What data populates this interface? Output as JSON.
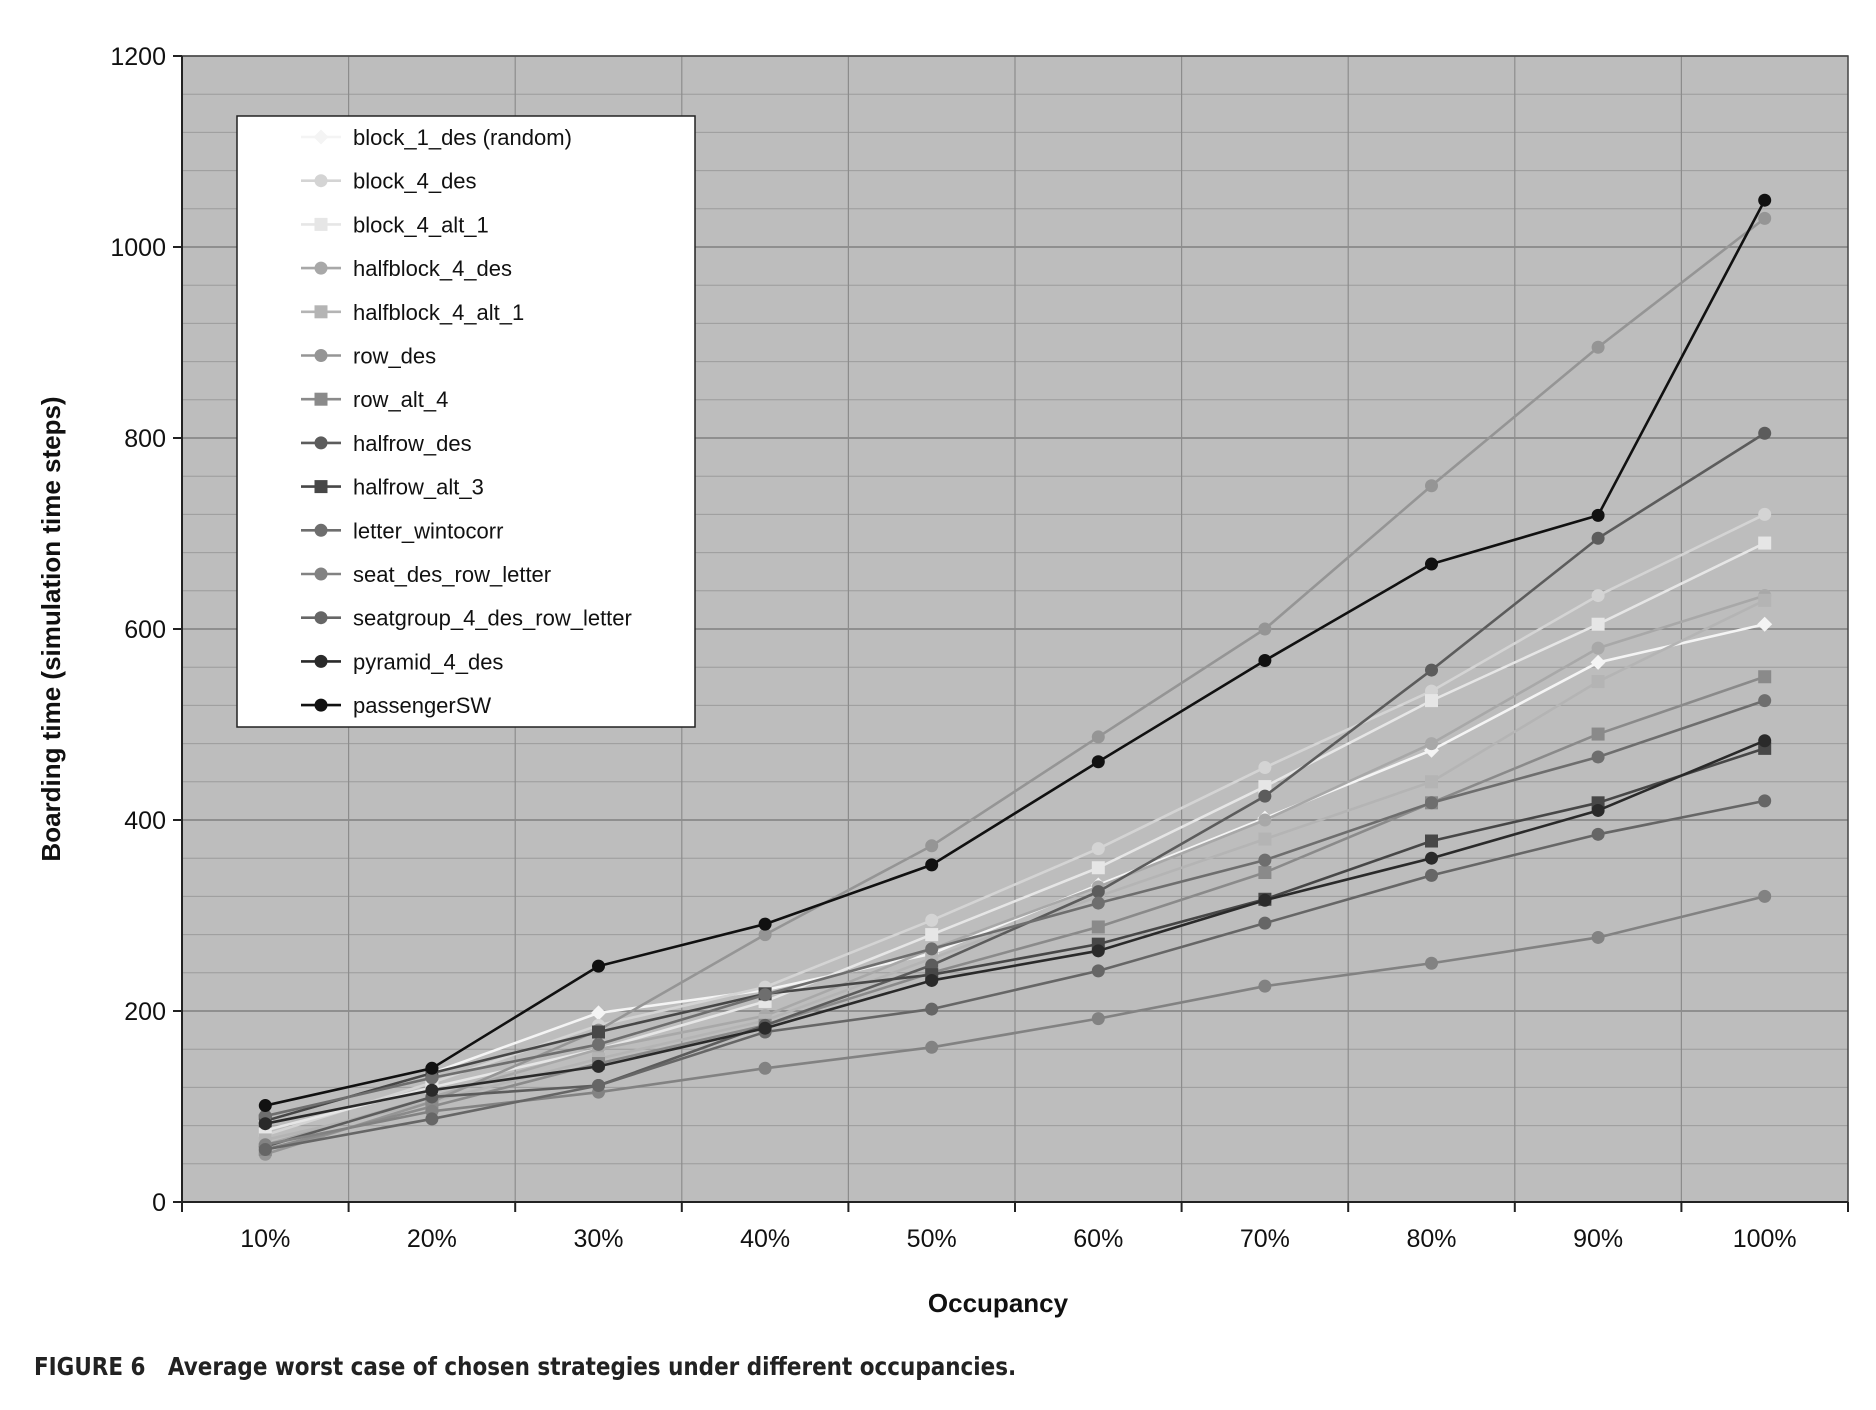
{
  "chart_data": {
    "type": "line",
    "x": [
      "10%",
      "20%",
      "30%",
      "40%",
      "50%",
      "60%",
      "70%",
      "80%",
      "90%",
      "100%"
    ],
    "xlabel": "Occupancy",
    "ylabel": "Boarding time (simulation time steps)",
    "ylim": [
      0,
      1200
    ],
    "yticks": [
      0,
      200,
      400,
      600,
      800,
      1000,
      1200
    ],
    "ytick_labels": [
      "0",
      "200",
      "400",
      "600",
      "800",
      "1000",
      "1200"
    ],
    "grid": true,
    "plot_background": "#bdbdbd",
    "legend_position": "top-left",
    "series": [
      {
        "name": "block_1_des (random)",
        "color": "#f4f4f4",
        "marker": "diamond",
        "values": [
          85,
          135,
          198,
          222,
          260,
          332,
          402,
          473,
          565,
          605
        ]
      },
      {
        "name": "block_4_des",
        "color": "#d4d4d4",
        "marker": "circle",
        "values": [
          70,
          125,
          185,
          225,
          295,
          370,
          455,
          535,
          635,
          720
        ]
      },
      {
        "name": "block_4_alt_1",
        "color": "#e6e6e6",
        "marker": "square",
        "values": [
          75,
          120,
          160,
          210,
          280,
          350,
          435,
          525,
          605,
          690
        ]
      },
      {
        "name": "halfblock_4_des",
        "color": "#a8a8a8",
        "marker": "circle",
        "values": [
          60,
          110,
          160,
          195,
          265,
          330,
          400,
          480,
          580,
          635
        ]
      },
      {
        "name": "halfblock_4_alt_1",
        "color": "#b4b4b4",
        "marker": "square",
        "values": [
          65,
          105,
          150,
          190,
          255,
          320,
          380,
          440,
          545,
          630
        ]
      },
      {
        "name": "row_des",
        "color": "#959595",
        "marker": "circle",
        "values": [
          50,
          105,
          180,
          280,
          373,
          487,
          600,
          750,
          895,
          1030
        ]
      },
      {
        "name": "row_alt_4",
        "color": "#8a8a8a",
        "marker": "square",
        "values": [
          55,
          100,
          145,
          185,
          240,
          288,
          345,
          418,
          490,
          550
        ]
      },
      {
        "name": "halfrow_des",
        "color": "#5c5c5c",
        "marker": "circle",
        "values": [
          58,
          110,
          122,
          185,
          248,
          325,
          425,
          557,
          695,
          805
        ]
      },
      {
        "name": "halfrow_alt_3",
        "color": "#474747",
        "marker": "square",
        "values": [
          85,
          135,
          178,
          218,
          238,
          270,
          317,
          378,
          418,
          475
        ]
      },
      {
        "name": "letter_wintocorr",
        "color": "#6e6e6e",
        "marker": "circle",
        "values": [
          90,
          130,
          165,
          217,
          265,
          313,
          358,
          418,
          466,
          525
        ]
      },
      {
        "name": "seat_des_row_letter",
        "color": "#828282",
        "marker": "circle",
        "values": [
          60,
          95,
          115,
          140,
          162,
          192,
          226,
          250,
          277,
          320
        ]
      },
      {
        "name": "seatgroup_4_des_row_letter",
        "color": "#666666",
        "marker": "circle",
        "values": [
          55,
          87,
          122,
          178,
          202,
          242,
          292,
          342,
          385,
          420
        ]
      },
      {
        "name": "pyramid_4_des",
        "color": "#2a2a2a",
        "marker": "circle",
        "values": [
          82,
          117,
          142,
          182,
          232,
          263,
          316,
          360,
          410,
          483
        ]
      },
      {
        "name": "passengerSW",
        "color": "#111111",
        "marker": "circle",
        "values": [
          101,
          140,
          247,
          291,
          353,
          461,
          567,
          668,
          719,
          1049
        ]
      }
    ]
  },
  "caption": {
    "label": "FIGURE 6",
    "text": "Average worst case of chosen strategies under different occupancies."
  }
}
